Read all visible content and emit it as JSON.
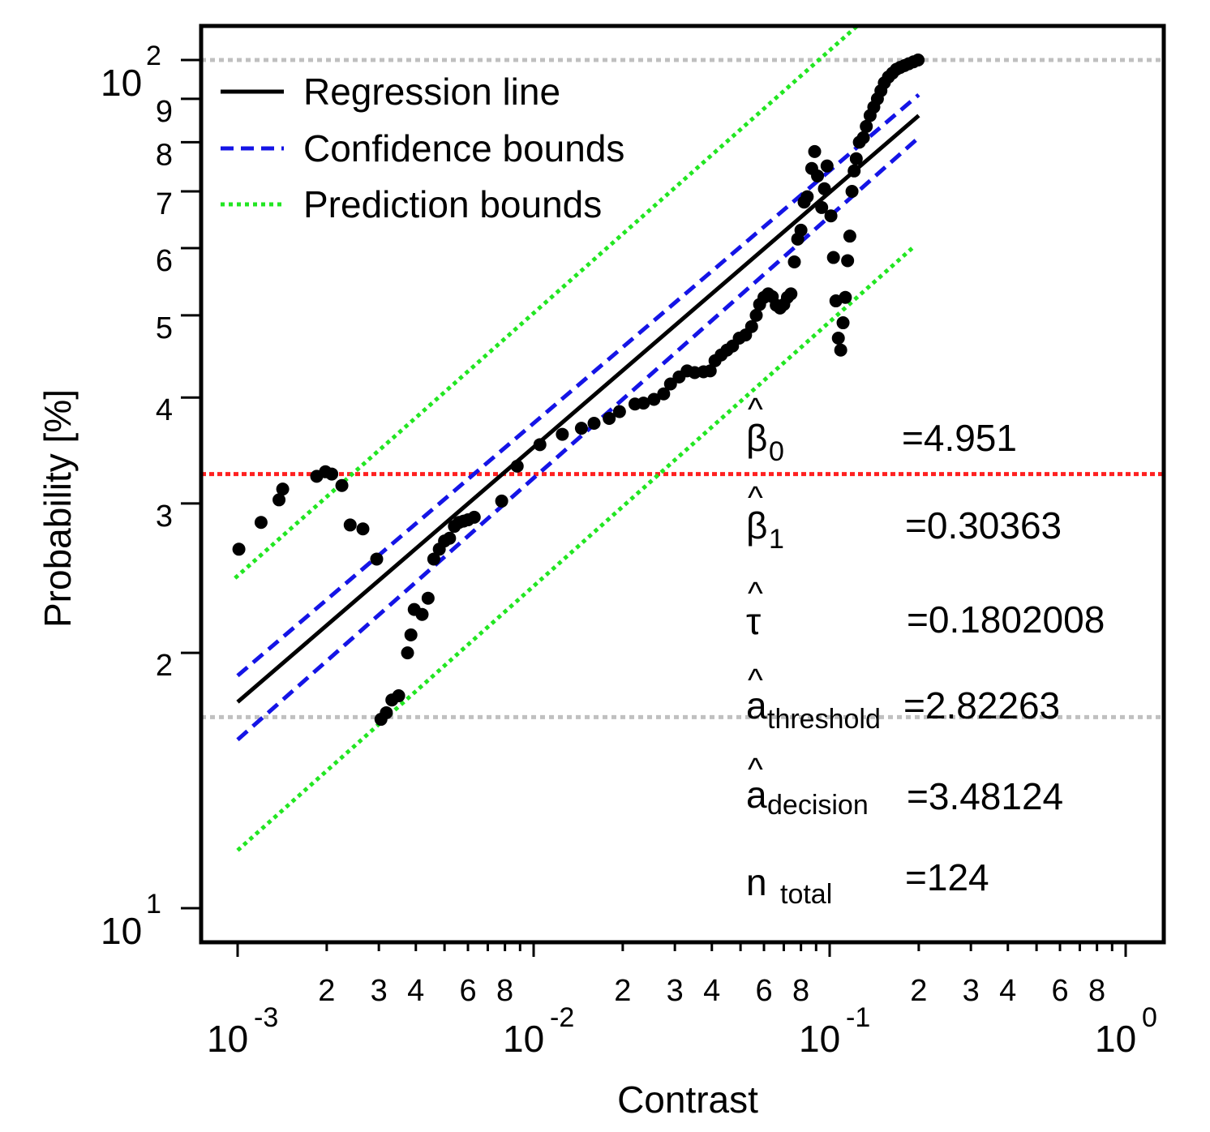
{
  "chart_data": {
    "type": "scatter",
    "title": "",
    "xlabel": "Contrast",
    "ylabel": "Probability [%]",
    "x_scale": "log10",
    "y_scale": "log10",
    "xlim": [
      0.00062,
      1.1
    ],
    "ylim": [
      9.3,
      115
    ],
    "x_decade_labels": [
      {
        "value": 0.001,
        "base": "10",
        "exp": "-3"
      },
      {
        "value": 0.01,
        "base": "10",
        "exp": "-2"
      },
      {
        "value": 0.1,
        "base": "10",
        "exp": "-1"
      },
      {
        "value": 1,
        "base": "10",
        "exp": "0"
      }
    ],
    "x_minor_labels": [
      {
        "value": 0.002,
        "label": "2"
      },
      {
        "value": 0.003,
        "label": "3"
      },
      {
        "value": 0.004,
        "label": "4"
      },
      {
        "value": 0.006,
        "label": "6"
      },
      {
        "value": 0.008,
        "label": "8"
      },
      {
        "value": 0.02,
        "label": "2"
      },
      {
        "value": 0.03,
        "label": "3"
      },
      {
        "value": 0.04,
        "label": "4"
      },
      {
        "value": 0.06,
        "label": "6"
      },
      {
        "value": 0.08,
        "label": "8"
      },
      {
        "value": 0.2,
        "label": "2"
      },
      {
        "value": 0.3,
        "label": "3"
      },
      {
        "value": 0.4,
        "label": "4"
      },
      {
        "value": 0.6,
        "label": "6"
      },
      {
        "value": 0.8,
        "label": "8"
      }
    ],
    "x_minor_ticks": [
      0.002,
      0.003,
      0.004,
      0.005,
      0.006,
      0.007,
      0.008,
      0.009,
      0.02,
      0.03,
      0.04,
      0.05,
      0.06,
      0.07,
      0.08,
      0.09,
      0.2,
      0.3,
      0.4,
      0.5,
      0.6,
      0.7,
      0.8,
      0.9
    ],
    "y_decade_labels": [
      {
        "value": 10,
        "base": "10",
        "exp": "1"
      },
      {
        "value": 100,
        "base": "10",
        "exp": "2"
      }
    ],
    "y_minor_labels": [
      {
        "value": 20,
        "label": "2"
      },
      {
        "value": 30,
        "label": "3"
      },
      {
        "value": 40,
        "label": "4"
      },
      {
        "value": 50,
        "label": "5"
      },
      {
        "value": 60,
        "label": "6"
      },
      {
        "value": 70,
        "label": "7"
      },
      {
        "value": 80,
        "label": "8"
      },
      {
        "value": 90,
        "label": "9"
      }
    ],
    "regression_line": {
      "name": "Regression line",
      "color": "#000000",
      "x": [
        0.001,
        0.2
      ],
      "y": [
        17.5,
        86
      ]
    },
    "confidence_upper": {
      "name": "Confidence bounds",
      "color": "#1414e6",
      "x": [
        0.001,
        0.2
      ],
      "y": [
        18.8,
        91
      ]
    },
    "confidence_lower": {
      "name": "Confidence bounds",
      "color": "#1414e6",
      "x": [
        0.001,
        0.2
      ],
      "y": [
        15.8,
        81
      ]
    },
    "prediction_upper": {
      "name": "Prediction bounds",
      "color": "#22e622",
      "x": [
        0.00098,
        0.125
      ],
      "y": [
        24.5,
        110
      ]
    },
    "prediction_lower": {
      "name": "Prediction bounds",
      "color": "#22e622",
      "x": [
        0.001,
        0.19
      ],
      "y": [
        11.7,
        60
      ]
    },
    "decision_line": {
      "color": "#ff2020",
      "y": 32.5
    },
    "threshold_lines": {
      "color": "#c0c0c0",
      "y": [
        16.8,
        100
      ]
    },
    "points": [
      [
        0.00101,
        26.5
      ],
      [
        0.0012,
        28.5
      ],
      [
        0.00138,
        30.3
      ],
      [
        0.00142,
        31.2
      ],
      [
        0.00185,
        32.3
      ],
      [
        0.00198,
        32.7
      ],
      [
        0.00208,
        32.5
      ],
      [
        0.00225,
        31.5
      ],
      [
        0.0024,
        28.3
      ],
      [
        0.00265,
        28.0
      ],
      [
        0.00295,
        25.8
      ],
      [
        0.00305,
        16.7
      ],
      [
        0.00318,
        17.0
      ],
      [
        0.00332,
        17.6
      ],
      [
        0.0035,
        17.8
      ],
      [
        0.00375,
        20.0
      ],
      [
        0.00385,
        21.0
      ],
      [
        0.00395,
        22.5
      ],
      [
        0.0042,
        22.2
      ],
      [
        0.0044,
        23.2
      ],
      [
        0.0046,
        25.8
      ],
      [
        0.0048,
        26.5
      ],
      [
        0.005,
        27.1
      ],
      [
        0.0052,
        27.3
      ],
      [
        0.0054,
        28.2
      ],
      [
        0.0056,
        28.5
      ],
      [
        0.0058,
        28.6
      ],
      [
        0.006,
        28.7
      ],
      [
        0.0063,
        28.9
      ],
      [
        0.0078,
        30.2
      ],
      [
        0.0088,
        33.2
      ],
      [
        0.0105,
        35.2
      ],
      [
        0.0125,
        36.2
      ],
      [
        0.0145,
        36.8
      ],
      [
        0.016,
        37.3
      ],
      [
        0.018,
        37.8
      ],
      [
        0.0195,
        38.5
      ],
      [
        0.022,
        39.3
      ],
      [
        0.0235,
        39.4
      ],
      [
        0.0255,
        39.8
      ],
      [
        0.0275,
        40.4
      ],
      [
        0.029,
        41.5
      ],
      [
        0.031,
        42.3
      ],
      [
        0.033,
        43.0
      ],
      [
        0.035,
        42.8
      ],
      [
        0.0375,
        42.9
      ],
      [
        0.0395,
        43.0
      ],
      [
        0.041,
        44.2
      ],
      [
        0.043,
        44.9
      ],
      [
        0.045,
        45.5
      ],
      [
        0.047,
        46.0
      ],
      [
        0.0495,
        47.0
      ],
      [
        0.052,
        47.4
      ],
      [
        0.0545,
        48.5
      ],
      [
        0.0565,
        50.0
      ],
      [
        0.058,
        51.5
      ],
      [
        0.06,
        52.5
      ],
      [
        0.062,
        53.0
      ],
      [
        0.064,
        52.6
      ],
      [
        0.066,
        51.4
      ],
      [
        0.068,
        51.0
      ],
      [
        0.07,
        51.5
      ],
      [
        0.072,
        52.5
      ],
      [
        0.074,
        53.0
      ],
      [
        0.076,
        57.8
      ],
      [
        0.078,
        61.5
      ],
      [
        0.08,
        63.0
      ],
      [
        0.082,
        68.0
      ],
      [
        0.084,
        69.0
      ],
      [
        0.087,
        74.5
      ],
      [
        0.089,
        78.0
      ],
      [
        0.091,
        73.0
      ],
      [
        0.094,
        67.0
      ],
      [
        0.096,
        70.5
      ],
      [
        0.098,
        75.0
      ],
      [
        0.101,
        65.5
      ],
      [
        0.103,
        58.5
      ],
      [
        0.105,
        52.0
      ],
      [
        0.107,
        47.0
      ],
      [
        0.109,
        45.5
      ],
      [
        0.111,
        49.0
      ],
      [
        0.113,
        52.5
      ],
      [
        0.115,
        58.0
      ],
      [
        0.117,
        62.0
      ],
      [
        0.119,
        70.0
      ],
      [
        0.121,
        74.0
      ],
      [
        0.123,
        76.5
      ],
      [
        0.126,
        80.0
      ],
      [
        0.13,
        81.0
      ],
      [
        0.133,
        83.5
      ],
      [
        0.137,
        86.0
      ],
      [
        0.141,
        88.0
      ],
      [
        0.145,
        90.0
      ],
      [
        0.149,
        92.0
      ],
      [
        0.153,
        94.0
      ],
      [
        0.158,
        95.5
      ],
      [
        0.163,
        96.5
      ],
      [
        0.168,
        97.5
      ],
      [
        0.173,
        98.0
      ],
      [
        0.179,
        98.5
      ],
      [
        0.185,
        99.0
      ],
      [
        0.192,
        99.5
      ],
      [
        0.199,
        100.0
      ]
    ],
    "legend": {
      "placement": "top-left",
      "entries": [
        {
          "label": "Regression line",
          "color": "#000000",
          "style": "solid"
        },
        {
          "label": "Confidence bounds",
          "color": "#1414e6",
          "style": "dashed"
        },
        {
          "label": "Prediction bounds",
          "color": "#22e622",
          "style": "dotted"
        }
      ]
    },
    "annotations": [
      {
        "symbol": "β",
        "sub": "0",
        "value": "=4.951"
      },
      {
        "symbol": "β",
        "sub": "1",
        "value": "=0.30363"
      },
      {
        "symbol": "τ",
        "sub": "",
        "value": "=0.1802008"
      },
      {
        "symbol": "a",
        "sub": "threshold",
        "value": "=2.82263"
      },
      {
        "symbol": "a",
        "sub": "decision",
        "value": "=3.48124"
      },
      {
        "symbol": "n",
        "sub": "total",
        "value": "=124"
      }
    ],
    "hat_symbol": "^"
  }
}
